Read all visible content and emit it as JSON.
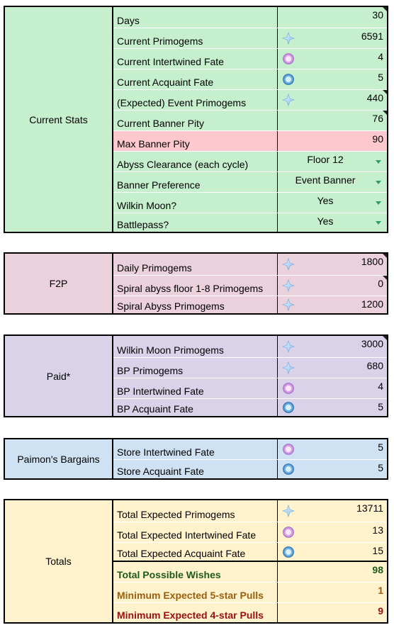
{
  "colors": {
    "current_stats_bg": "#c6efce",
    "max_pity_bg": "#ffc7ce",
    "f2p_bg": "#ead1dc",
    "paid_bg": "#d9d2e9",
    "paimon_bg": "#cfe2f3",
    "totals_bg": "#fff2cc"
  },
  "sections": [
    {
      "label": "Current Stats",
      "rows": [
        {
          "label": "Days",
          "value": "30",
          "icon": ""
        },
        {
          "label": "Current Primogems",
          "value": "6591",
          "icon": "primogem-icon"
        },
        {
          "label": "Current Intertwined Fate",
          "value": "4",
          "icon": "intertwined-fate-icon"
        },
        {
          "label": "Current Acquaint Fate",
          "value": "5",
          "icon": "acquaint-fate-icon"
        },
        {
          "label": "(Expected) Event Primogems",
          "value": "440",
          "icon": "primogem-icon"
        },
        {
          "label": "Current Banner Pity",
          "value": "76",
          "icon": ""
        },
        {
          "label": "Max Banner Pity",
          "value": "90",
          "icon": ""
        },
        {
          "label": "Abyss Clearance (each cycle)",
          "value": "Floor 12",
          "icon": ""
        },
        {
          "label": "Banner Preference",
          "value": "Event Banner",
          "icon": ""
        },
        {
          "label": "Wilkin Moon?",
          "value": "Yes",
          "icon": ""
        },
        {
          "label": "Battlepass?",
          "value": "Yes",
          "icon": ""
        }
      ]
    },
    {
      "label": "F2P",
      "rows": [
        {
          "label": "Daily Primogems",
          "value": "1800",
          "icon": "primogem-icon"
        },
        {
          "label": "Spiral abyss floor 1-8 Primogems",
          "value": "0",
          "icon": "primogem-icon"
        },
        {
          "label": "Spiral Abyss Primogems",
          "value": "1200",
          "icon": "primogem-icon"
        }
      ]
    },
    {
      "label": "Paid*",
      "rows": [
        {
          "label": "Wilkin Moon Primogems",
          "value": "3000",
          "icon": "primogem-icon"
        },
        {
          "label": "BP Primogems",
          "value": "680",
          "icon": "primogem-icon"
        },
        {
          "label": "BP Intertwined Fate",
          "value": "4",
          "icon": "intertwined-fate-icon"
        },
        {
          "label": "BP Acquaint Fate",
          "value": "5",
          "icon": "acquaint-fate-icon"
        }
      ]
    },
    {
      "label": "Paimon's Bargains",
      "rows": [
        {
          "label": "Store Intertwined Fate",
          "value": "5",
          "icon": "intertwined-fate-icon"
        },
        {
          "label": "Store Acquaint Fate",
          "value": "5",
          "icon": "acquaint-fate-icon"
        }
      ]
    },
    {
      "label": "Totals",
      "rows": [
        {
          "label": "Total Expected Primogems",
          "value": "13711",
          "icon": "primogem-icon"
        },
        {
          "label": "Total Expected Intertwined Fate",
          "value": "13",
          "icon": "intertwined-fate-icon"
        },
        {
          "label": "Total Expected Acquaint Fate",
          "value": "15",
          "icon": "acquaint-fate-icon"
        },
        {
          "label": "Total Possible Wishes",
          "value": "98",
          "icon": ""
        },
        {
          "label": "Minimum Expected 5-star Pulls",
          "value": "1",
          "icon": ""
        },
        {
          "label": "Minimum Expected 4-star Pulls",
          "value": "9",
          "icon": ""
        }
      ]
    }
  ]
}
